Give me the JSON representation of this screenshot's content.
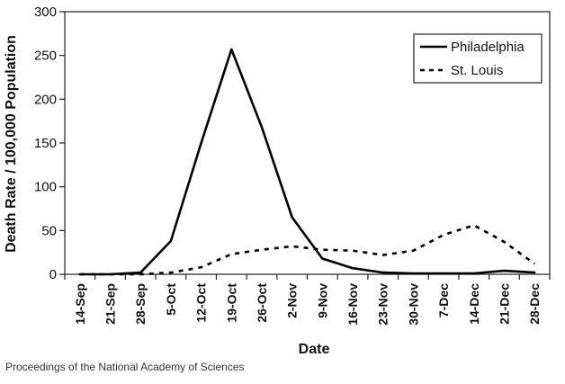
{
  "chart_data": {
    "type": "line",
    "title": "",
    "xlabel": "Date",
    "ylabel": "Death Rate / 100,000 Population",
    "ylim": [
      0,
      300
    ],
    "yticks": [
      0,
      50,
      100,
      150,
      200,
      250,
      300
    ],
    "categories": [
      "14-Sep",
      "21-Sep",
      "28-Sep",
      "5-Oct",
      "12-Oct",
      "19-Oct",
      "26-Oct",
      "2-Nov",
      "9-Nov",
      "16-Nov",
      "23-Nov",
      "30-Nov",
      "7-Dec",
      "14-Dec",
      "21-Dec",
      "28-Dec"
    ],
    "grid": false,
    "legend_position": "top-right",
    "series": [
      {
        "name": "Philadelphia",
        "style": "solid",
        "values": [
          0,
          0,
          2,
          38,
          150,
          257,
          168,
          65,
          18,
          7,
          2,
          1,
          1,
          1,
          4,
          2
        ]
      },
      {
        "name": "St. Louis",
        "style": "dashed",
        "values": [
          0,
          0,
          0,
          2,
          8,
          23,
          28,
          32,
          28,
          27,
          22,
          27,
          45,
          56,
          37,
          12
        ]
      }
    ]
  },
  "source_text": "Proceedings of the National Academy of Sciences"
}
